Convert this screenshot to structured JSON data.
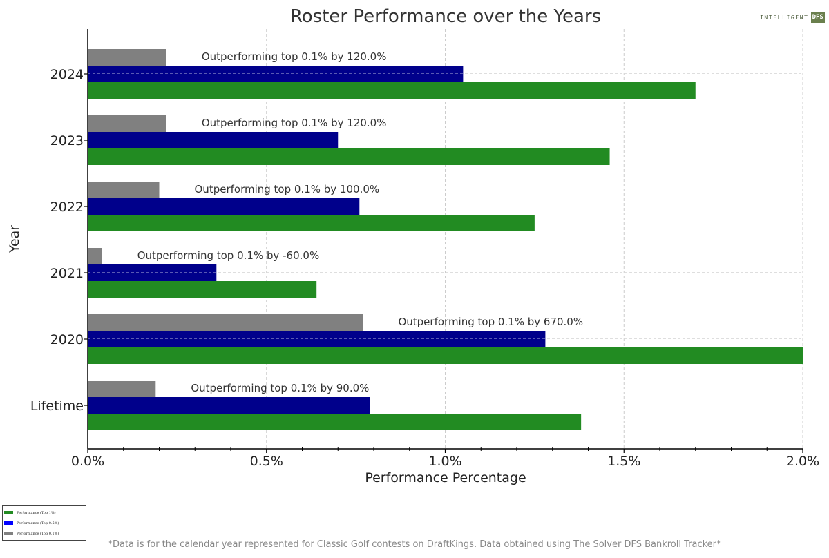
{
  "logo": {
    "text": "INTELLIGENT",
    "box_text": "DFS"
  },
  "footnote": "*Data is for the calendar year represented for Classic Golf contests on DraftKings. Data obtained using The Solver DFS Bankroll Tracker*",
  "colors": {
    "top1": "#228b22",
    "top05": "#00008b",
    "top01": "#808080",
    "legend_top05": "#0000ff",
    "annotation": "#333333",
    "grid": "#cccccc"
  },
  "chart_data": {
    "type": "bar",
    "orientation": "horizontal",
    "title": "Roster Performance over the Years",
    "xlabel": "Performance Percentage",
    "ylabel": "Year",
    "xlim": [
      0,
      2.0
    ],
    "x_unit": "%",
    "x_ticks": [
      "0.0%",
      "0.5%",
      "1.0%",
      "1.5%",
      "2.0%"
    ],
    "x_tick_values": [
      0,
      0.5,
      1.0,
      1.5,
      2.0
    ],
    "grid": true,
    "legend_position": "bottom-left",
    "categories": [
      "Lifetime",
      "2020",
      "2021",
      "2022",
      "2023",
      "2024"
    ],
    "series": [
      {
        "name": "Performance (Top 1%)",
        "color": "#228b22",
        "values": [
          1.38,
          2.0,
          0.64,
          1.25,
          1.46,
          1.7
        ]
      },
      {
        "name": "Performance (Top 0.5%)",
        "color": "#00008b",
        "values": [
          0.79,
          1.28,
          0.36,
          0.76,
          0.7,
          1.05
        ]
      },
      {
        "name": "Performance (Top 0.1%)",
        "color": "#808080",
        "values": [
          0.19,
          0.77,
          0.04,
          0.2,
          0.22,
          0.22
        ]
      }
    ],
    "annotations": [
      "Outperforming top 0.1% by 90.0%",
      "Outperforming top 0.1% by 670.0%",
      "Outperforming top 0.1% by -60.0%",
      "Outperforming top 0.1% by 100.0%",
      "Outperforming top 0.1% by 120.0%",
      "Outperforming top 0.1% by 120.0%"
    ]
  }
}
